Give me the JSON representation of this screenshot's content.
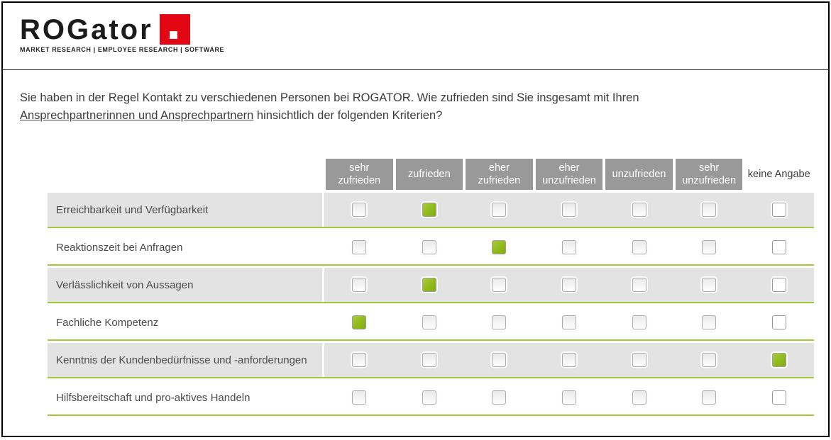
{
  "logo": {
    "brand": "ROGator",
    "tagline": "MARKET RESEARCH | EMPLOYEE RESEARCH | SOFTWARE",
    "accent_color": "#e30613"
  },
  "question": {
    "line1": "Sie haben in der Regel Kontakt zu verschiedenen Personen bei ROGATOR. Wie zufrieden sind Sie insgesamt mit Ihren",
    "underlined": "Ansprechpartnerinnen und Ansprechpartnern",
    "line2_rest": " hinsichtlich der folgenden Kriterien?"
  },
  "matrix": {
    "columns": [
      {
        "label": "sehr zufrieden",
        "header_bg": true
      },
      {
        "label": "zufrieden",
        "header_bg": true
      },
      {
        "label": "eher zufrieden",
        "header_bg": true
      },
      {
        "label": "eher unzufrieden",
        "header_bg": true
      },
      {
        "label": "unzufrieden",
        "header_bg": true
      },
      {
        "label": "sehr unzufrieden",
        "header_bg": true
      },
      {
        "label": "keine Angabe",
        "header_bg": false
      }
    ],
    "rows": [
      {
        "label": "Erreichbarkeit und Verfügbarkeit",
        "checked_index": 1,
        "checked_label": "zufrieden"
      },
      {
        "label": "Reaktionszeit bei Anfragen",
        "checked_index": 2,
        "checked_label": "eher zufrieden"
      },
      {
        "label": "Verlässlichkeit von Aussagen",
        "checked_index": 1,
        "checked_label": "zufrieden"
      },
      {
        "label": "Fachliche Kompetenz",
        "checked_index": 0,
        "checked_label": "sehr zufrieden"
      },
      {
        "label": "Kenntnis der Kundenbedürfnisse und -anforderungen",
        "checked_index": 6,
        "checked_label": "keine Angabe"
      },
      {
        "label": "Hilfsbereitschaft und pro-aktives Handeln",
        "checked_index": null,
        "checked_label": null
      }
    ],
    "colors": {
      "header_bg": "#999999",
      "row_stripe": "#e3e3e3",
      "divider_green": "#a2c937",
      "checked_green": "#94be1f"
    }
  }
}
